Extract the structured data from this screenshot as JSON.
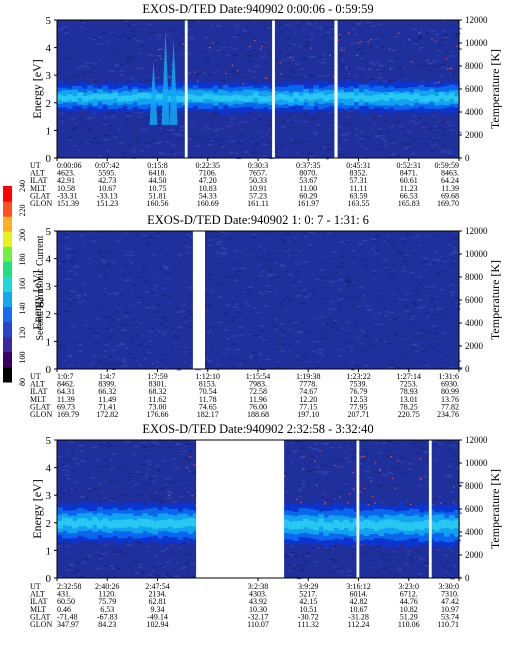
{
  "colors": {
    "background": "#1f2f9c",
    "noise_dark": "#1a2478",
    "noise_mid": "#3448b4",
    "band_deep": "#0a35d6",
    "band_mid": "#0a6cf0",
    "band_bright": "#12a8f2",
    "band_cyan": "#2fd3f0",
    "hot": "#ff5a3a",
    "gap": "#ffffff"
  },
  "colorbar": {
    "label": "Second Harmonic Current",
    "ticks": [
      "80",
      "100",
      "120",
      "140",
      "160",
      "180",
      "200",
      "220",
      "240"
    ],
    "colors": [
      "#000000",
      "#3a0066",
      "#3a2a9a",
      "#2a44c8",
      "#1a6af0",
      "#10a8f0",
      "#20d8d8",
      "#20e080",
      "#70f040",
      "#e8f020",
      "#ffb020",
      "#ff5020",
      "#ff0000"
    ]
  },
  "chart_data": [
    {
      "type": "heatmap",
      "title": "EXOS-D/TED   Date:940902  0:00:06 - 0:59:59",
      "ylabel": "Energy [eV]",
      "y2label": "Temperature [K]",
      "ylim": [
        0,
        5
      ],
      "y2lim": [
        0,
        12000
      ],
      "yticks": [
        "0",
        "1",
        "2",
        "3",
        "4",
        "5"
      ],
      "y2ticks": [
        "0",
        "2000",
        "4000",
        "6000",
        "8000",
        "10000",
        "12000"
      ],
      "data_gaps": [
        [
          0.318,
          0.325
        ],
        [
          0.535,
          0.542
        ],
        [
          0.69,
          0.698
        ]
      ],
      "band": {
        "center": [
          2.2,
          2.2
        ],
        "width": [
          1.0,
          1.1
        ]
      },
      "spikes": [
        [
          0.27,
          4.6
        ],
        [
          0.29,
          4.3
        ],
        [
          0.24,
          3.5
        ]
      ],
      "row_labels": [
        "UT",
        "ALT",
        "ILAT",
        "MLT",
        "GLAT",
        "GLON"
      ],
      "columns": [
        [
          "0:00:06",
          "4623.",
          "42.91",
          "10.58",
          "-33.31",
          "151.39"
        ],
        [
          "0:07:42",
          "5595.",
          "42.73",
          "10.67",
          "-33.13",
          "151.23"
        ],
        [
          "0:15:8",
          "6418.",
          "44.50",
          "10.75",
          "51.81",
          "160.56"
        ],
        [
          "0:22:35",
          "7106.",
          "47.20",
          "10.83",
          "54.33",
          "160.69"
        ],
        [
          "0:30:3",
          "7657.",
          "50.33",
          "10.91",
          "57.23",
          "161.11"
        ],
        [
          "0:37:35",
          "8070.",
          "53.67",
          "11.00",
          "60.29",
          "161.97"
        ],
        [
          "0:45:31",
          "8352.",
          "57.31",
          "11.11",
          "63.59",
          "163.55"
        ],
        [
          "0:52:31",
          "8471.",
          "60.61",
          "11.23",
          "66.53",
          "165.83"
        ],
        [
          "0:59:59",
          "8463.",
          "64.24",
          "11.39",
          "69.68",
          "169.70"
        ]
      ]
    },
    {
      "type": "heatmap",
      "title": "EXOS-D/TED   Date:940902  1: 0: 7 - 1:31: 6",
      "ylabel": "Energy [eV]",
      "y2label": "Temperature [K]",
      "ylim": [
        0,
        5
      ],
      "y2lim": [
        0,
        12000
      ],
      "yticks": [
        "0",
        "1",
        "2",
        "3",
        "4",
        "5"
      ],
      "y2ticks": [
        "0",
        "2000",
        "4000",
        "6000",
        "8000",
        "10000",
        "12000"
      ],
      "data_gaps": [
        [
          0.338,
          0.368
        ]
      ],
      "band": null,
      "spikes": [],
      "row_labels": [
        "UT",
        "ALT",
        "ILAT",
        "MLT",
        "GLAT",
        "GLON"
      ],
      "columns": [
        [
          "1:0:7",
          "8462.",
          "64.31",
          "11.39",
          "69.73",
          "169.79"
        ],
        [
          "1:4:7",
          "8399.",
          "66.32",
          "11.49",
          "71.41",
          "172.82"
        ],
        [
          "1:7:59",
          "8301.",
          "68.32",
          "11.62",
          "73.00",
          "176.66"
        ],
        [
          "1:12:10",
          "8153.",
          "70.54",
          "11.78",
          "74.65",
          "182.17"
        ],
        [
          "1:15:54",
          "7983.",
          "72.58",
          "11.96",
          "76.00",
          "188.68"
        ],
        [
          "1:19:38",
          "7778.",
          "74.67",
          "12.20",
          "77.15",
          "197.10"
        ],
        [
          "1:23:22",
          "7539.",
          "76.79",
          "12.53",
          "77.95",
          "207.71"
        ],
        [
          "1:27:14",
          "7253.",
          "78.93",
          "13.01",
          "78.25",
          "220.75"
        ],
        [
          "1:31:6",
          "6930.",
          "80.99",
          "13.76",
          "77.82",
          "234.76"
        ]
      ]
    },
    {
      "type": "heatmap",
      "title": "EXOS-D/TED   Date:940902  2:32:58 - 3:32:40",
      "ylabel": "Energy [eV]",
      "y2label": "Temperature [K]",
      "ylim": [
        0,
        5
      ],
      "y2lim": [
        0,
        12000
      ],
      "yticks": [
        "0",
        "1",
        "2",
        "3",
        "4",
        "5"
      ],
      "y2ticks": [
        "0",
        "2000",
        "4000",
        "6000",
        "8000",
        "10000",
        "12000"
      ],
      "data_gaps": [
        [
          0.346,
          0.565
        ],
        [
          0.745,
          0.752
        ],
        [
          0.925,
          0.932
        ]
      ],
      "band": {
        "center": [
          2.0,
          1.9
        ],
        "width": [
          1.4,
          1.5
        ]
      },
      "spikes": [],
      "row_labels": [
        "UT",
        "ALT",
        "ILAT",
        "MLT",
        "GLAT",
        "GLON"
      ],
      "columns": [
        [
          "2:32:58",
          "431.",
          "60.50",
          "0.46",
          "-71.48",
          "347.97"
        ],
        [
          "2:40:26",
          "1120.",
          "75.79",
          "6.53",
          "-67.83",
          "84.23"
        ],
        [
          "2:47:54",
          "2134.",
          "62.81",
          "9.34",
          "-49.14",
          "102.94"
        ],
        [
          "",
          "",
          "",
          "",
          "",
          ""
        ],
        [
          "3:2:38",
          "4303.",
          "43.92",
          "10.30",
          "-32.17",
          "110.07"
        ],
        [
          "3:9:29",
          "5217.",
          "42.15",
          "10.51",
          "-30.72",
          "111.32"
        ],
        [
          "3:16:12",
          "6014.",
          "42.82",
          "10.67",
          "-31.28",
          "112.24"
        ],
        [
          "3:23:0",
          "6712.",
          "44.76",
          "10.82",
          "51.29",
          "110.06"
        ],
        [
          "3:30:0",
          "7310.",
          "47.42",
          "10.97",
          "53.74",
          "110.71"
        ]
      ]
    }
  ]
}
